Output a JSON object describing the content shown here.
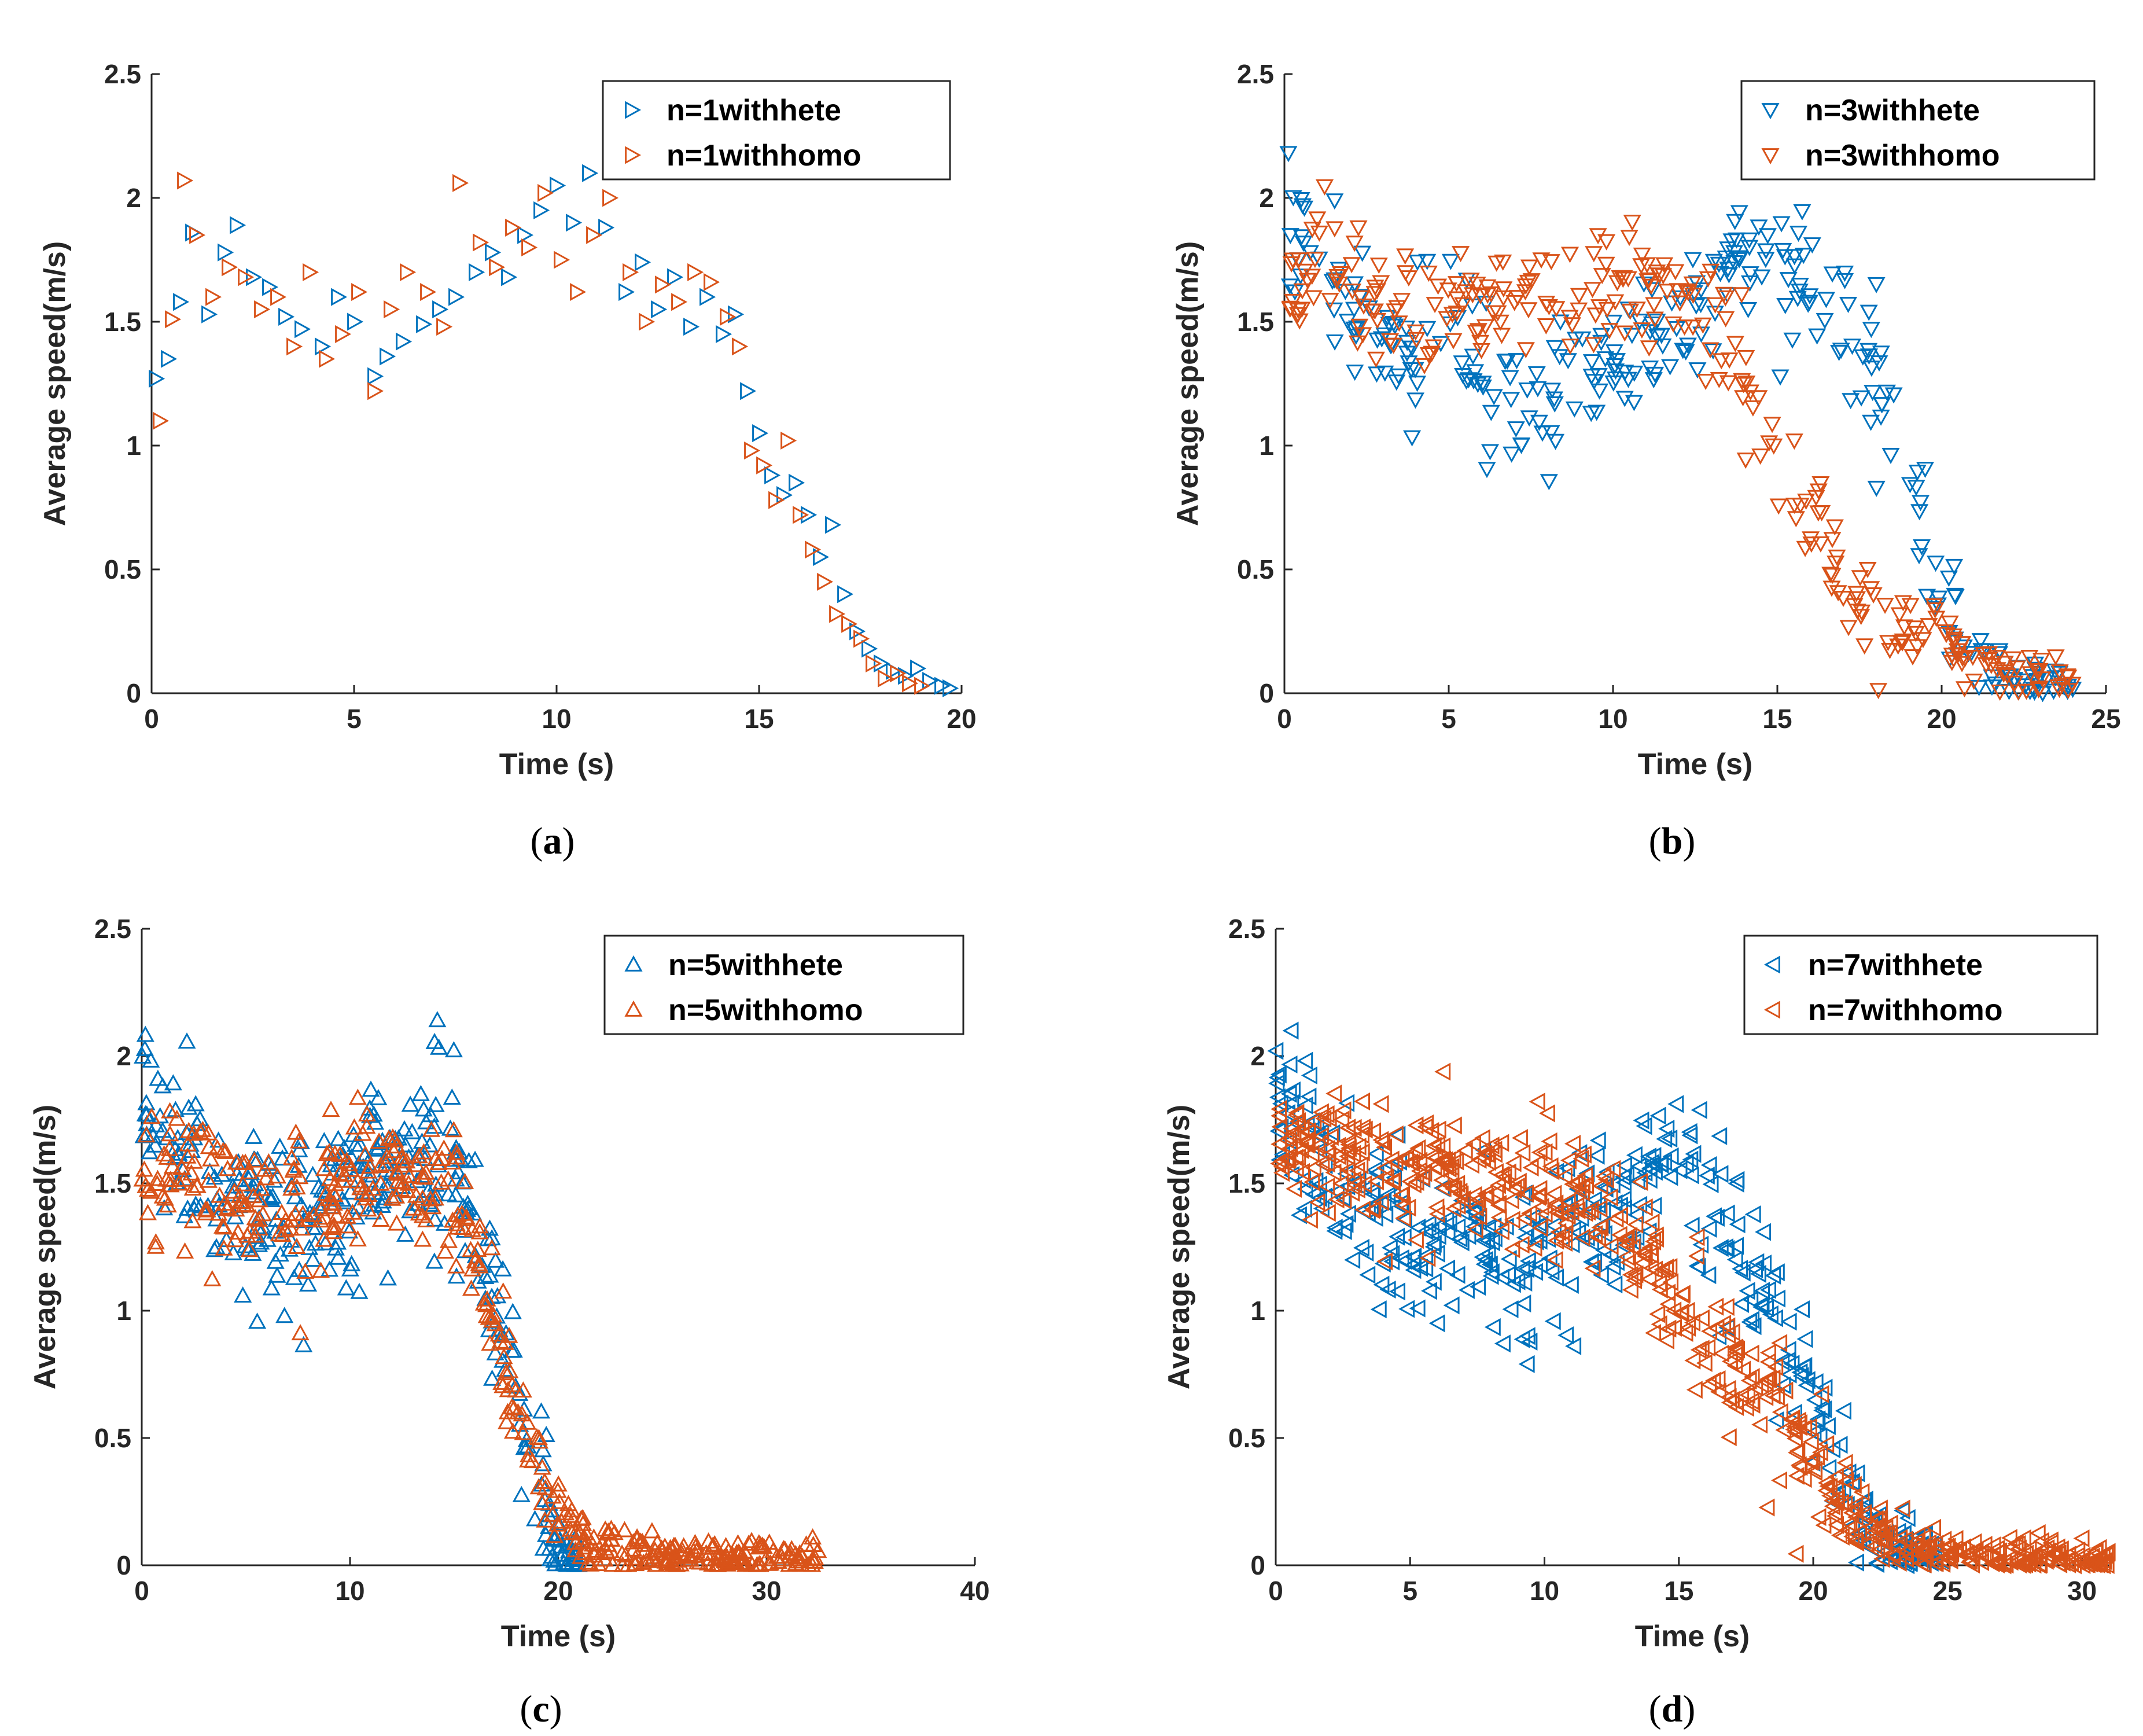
{
  "figure": {
    "panels": [
      "a",
      "b",
      "c",
      "d"
    ]
  },
  "colors": {
    "hete": "#0072BD",
    "homo": "#D95319",
    "axis": "#262626"
  },
  "chart_data": [
    {
      "id": "a",
      "type": "scatter",
      "caption_letter": "a",
      "xlabel": "Time (s)",
      "ylabel": "Average speed(m/s)",
      "xlim": [
        0,
        20
      ],
      "ylim": [
        0,
        2.5
      ],
      "xticks": [
        0,
        5,
        10,
        15,
        20
      ],
      "yticks": [
        0,
        0.5,
        1,
        1.5,
        2,
        2.5
      ],
      "marker": "triangle-right",
      "legend_position": "top-right",
      "series": [
        {
          "name": "n=1withhete",
          "color": "#0072BD",
          "x": [
            0.1,
            0.4,
            0.7,
            1.0,
            1.4,
            1.8,
            2.1,
            2.5,
            2.9,
            3.3,
            3.7,
            4.2,
            4.6,
            5.0,
            5.5,
            5.8,
            6.2,
            6.7,
            7.1,
            7.5,
            8.0,
            8.4,
            8.8,
            9.2,
            9.6,
            10.0,
            10.4,
            10.8,
            11.2,
            11.7,
            12.1,
            12.5,
            12.9,
            13.3,
            13.7,
            14.1,
            14.4,
            14.7,
            15.0,
            15.3,
            15.6,
            15.9,
            16.2,
            16.5,
            16.8,
            17.1,
            17.4,
            17.7,
            18.0,
            18.3,
            18.6,
            18.9,
            19.2,
            19.5,
            19.7
          ],
          "y": [
            1.27,
            1.35,
            1.58,
            1.86,
            1.53,
            1.78,
            1.89,
            1.68,
            1.64,
            1.52,
            1.47,
            1.4,
            1.6,
            1.5,
            1.28,
            1.36,
            1.42,
            1.49,
            1.55,
            1.6,
            1.7,
            1.78,
            1.68,
            1.85,
            1.95,
            2.05,
            1.9,
            2.1,
            1.88,
            1.62,
            1.74,
            1.55,
            1.68,
            1.48,
            1.6,
            1.45,
            1.53,
            1.22,
            1.05,
            0.88,
            0.8,
            0.85,
            0.72,
            0.55,
            0.68,
            0.4,
            0.25,
            0.18,
            0.12,
            0.09,
            0.07,
            0.1,
            0.05,
            0.03,
            0.02
          ]
        },
        {
          "name": "n=1withhomo",
          "color": "#D95319",
          "x": [
            0.2,
            0.5,
            0.8,
            1.1,
            1.5,
            1.9,
            2.3,
            2.7,
            3.1,
            3.5,
            3.9,
            4.3,
            4.7,
            5.1,
            5.5,
            5.9,
            6.3,
            6.8,
            7.2,
            7.6,
            8.1,
            8.5,
            8.9,
            9.3,
            9.7,
            10.1,
            10.5,
            10.9,
            11.3,
            11.8,
            12.2,
            12.6,
            13.0,
            13.4,
            13.8,
            14.2,
            14.5,
            14.8,
            15.1,
            15.4,
            15.7,
            16.0,
            16.3,
            16.6,
            16.9,
            17.2,
            17.5,
            17.8,
            18.1,
            18.4,
            18.7,
            19.0
          ],
          "y": [
            1.1,
            1.51,
            2.07,
            1.85,
            1.6,
            1.72,
            1.68,
            1.55,
            1.6,
            1.4,
            1.7,
            1.35,
            1.45,
            1.62,
            1.22,
            1.55,
            1.7,
            1.62,
            1.48,
            2.06,
            1.82,
            1.72,
            1.88,
            1.8,
            2.02,
            1.75,
            1.62,
            1.85,
            2.0,
            1.7,
            1.5,
            1.65,
            1.58,
            1.7,
            1.66,
            1.52,
            1.4,
            0.98,
            0.92,
            0.78,
            1.02,
            0.72,
            0.58,
            0.45,
            0.32,
            0.28,
            0.22,
            0.12,
            0.06,
            0.08,
            0.04,
            0.03
          ]
        }
      ]
    },
    {
      "id": "b",
      "type": "scatter",
      "caption_letter": "b",
      "xlabel": "Time (s)",
      "ylabel": "Average speed(m/s)",
      "xlim": [
        0,
        25
      ],
      "ylim": [
        0,
        2.5
      ],
      "xticks": [
        0,
        5,
        10,
        15,
        20,
        25
      ],
      "yticks": [
        0,
        0.5,
        1,
        1.5,
        2,
        2.5
      ],
      "marker": "triangle-down",
      "legend_position": "top-right",
      "series": [
        {
          "name": "n=3withhete",
          "color": "#0072BD",
          "trend": {
            "x": [
              0,
              1,
              2.5,
              3.5,
              5,
              6,
              7,
              7.5,
              8.5,
              10,
              12,
              14,
              15,
              16,
              17,
              18,
              19,
              20,
              21,
              22,
              23,
              24
            ],
            "y": [
              1.85,
              1.75,
              1.55,
              1.32,
              1.45,
              1.28,
              1.12,
              1.05,
              1.22,
              1.35,
              1.5,
              1.72,
              1.82,
              1.68,
              1.5,
              1.25,
              0.95,
              0.35,
              0.12,
              0.06,
              0.03,
              0.02
            ]
          },
          "count": 300,
          "x_range": [
            0,
            24
          ],
          "spread": 0.14,
          "seed": 11
        },
        {
          "name": "n=3withhomo",
          "color": "#D95319",
          "trend": {
            "x": [
              0,
              1,
              2,
              3,
              5,
              7,
              9,
              11,
              12.5,
              13.5,
              14.5,
              15.5,
              16.5,
              17.5,
              18.5,
              19.5,
              20.5,
              21.5,
              22.5,
              23.5,
              24
            ],
            "y": [
              1.7,
              1.75,
              1.62,
              1.55,
              1.52,
              1.58,
              1.6,
              1.62,
              1.6,
              1.38,
              1.1,
              0.82,
              0.55,
              0.38,
              0.32,
              0.25,
              0.14,
              0.08,
              0.06,
              0.04,
              0.03
            ]
          },
          "count": 300,
          "x_range": [
            0,
            24
          ],
          "spread": 0.12,
          "seed": 23
        }
      ]
    },
    {
      "id": "c",
      "type": "scatter",
      "caption_letter": "c",
      "xlabel": "Time (s)",
      "ylabel": "Average speed(m/s)",
      "xlim": [
        0,
        40
      ],
      "ylim": [
        0,
        2.5
      ],
      "xticks": [
        0,
        10,
        20,
        30,
        40
      ],
      "yticks": [
        0,
        0.5,
        1,
        1.5,
        2,
        2.5
      ],
      "marker": "triangle-up",
      "legend_position": "top-right",
      "series": [
        {
          "name": "n=5withhete",
          "color": "#0072BD",
          "trend": {
            "x": [
              0,
              1,
              3,
              5,
              7,
              9,
              11,
              13,
              15,
              16,
              17,
              18,
              19,
              20,
              21
            ],
            "y": [
              1.8,
              1.72,
              1.48,
              1.38,
              1.35,
              1.4,
              1.58,
              1.62,
              1.62,
              1.38,
              1.0,
              0.62,
              0.32,
              0.06,
              0.01
            ]
          },
          "count": 340,
          "x_range": [
            0,
            21
          ],
          "spread": 0.17,
          "seed": 37
        },
        {
          "name": "n=5withhomo",
          "color": "#D95319",
          "trend": {
            "x": [
              0,
              2,
              4,
              6,
              8,
              10,
              12,
              14,
              15,
              16,
              17,
              18,
              19,
              20,
              21,
              22,
              24,
              26,
              28,
              30,
              32.5
            ],
            "y": [
              1.55,
              1.58,
              1.5,
              1.42,
              1.38,
              1.5,
              1.52,
              1.52,
              1.45,
              1.22,
              0.92,
              0.65,
              0.45,
              0.22,
              0.1,
              0.07,
              0.05,
              0.04,
              0.03,
              0.03,
              0.02
            ]
          },
          "count": 480,
          "x_range": [
            0,
            32.5
          ],
          "spread": 0.13,
          "seed": 41
        }
      ]
    },
    {
      "id": "d",
      "type": "scatter",
      "caption_letter": "d",
      "xlabel": "Time (s)",
      "ylabel": "Average speed(m/s)",
      "xlim": [
        0,
        31
      ],
      "ylim": [
        0,
        2.5
      ],
      "xticks": [
        0,
        5,
        10,
        15,
        20,
        25,
        30
      ],
      "yticks": [
        0,
        0.5,
        1,
        1.5,
        2,
        2.5
      ],
      "marker": "triangle-left",
      "legend_position": "top-right",
      "series": [
        {
          "name": "n=7withhete",
          "color": "#0072BD",
          "trend": {
            "x": [
              0,
              1,
              3,
              5,
              7,
              9,
              11,
              13,
              14,
              15,
              16,
              17,
              18,
              19,
              20,
              21,
              22,
              23,
              24,
              25
            ],
            "y": [
              1.82,
              1.68,
              1.4,
              1.3,
              1.28,
              1.2,
              1.28,
              1.42,
              1.5,
              1.55,
              1.42,
              1.3,
              1.08,
              0.82,
              0.58,
              0.32,
              0.16,
              0.08,
              0.04,
              0.02
            ]
          },
          "count": 420,
          "x_range": [
            0,
            25
          ],
          "spread": 0.16,
          "seed": 53
        },
        {
          "name": "n=7withhomo",
          "color": "#D95319",
          "trend": {
            "x": [
              0,
              2,
              4,
              6,
              8,
              10,
              12,
              13,
              14,
              15,
              16,
              17,
              18,
              19,
              20,
              21,
              22,
              23,
              24,
              25,
              27,
              29,
              31
            ],
            "y": [
              1.65,
              1.62,
              1.58,
              1.55,
              1.52,
              1.48,
              1.42,
              1.3,
              1.18,
              0.98,
              0.85,
              0.78,
              0.7,
              0.55,
              0.38,
              0.22,
              0.14,
              0.1,
              0.06,
              0.04,
              0.03,
              0.03,
              0.02
            ]
          },
          "count": 640,
          "x_range": [
            0,
            31
          ],
          "spread": 0.12,
          "seed": 67
        }
      ]
    }
  ]
}
